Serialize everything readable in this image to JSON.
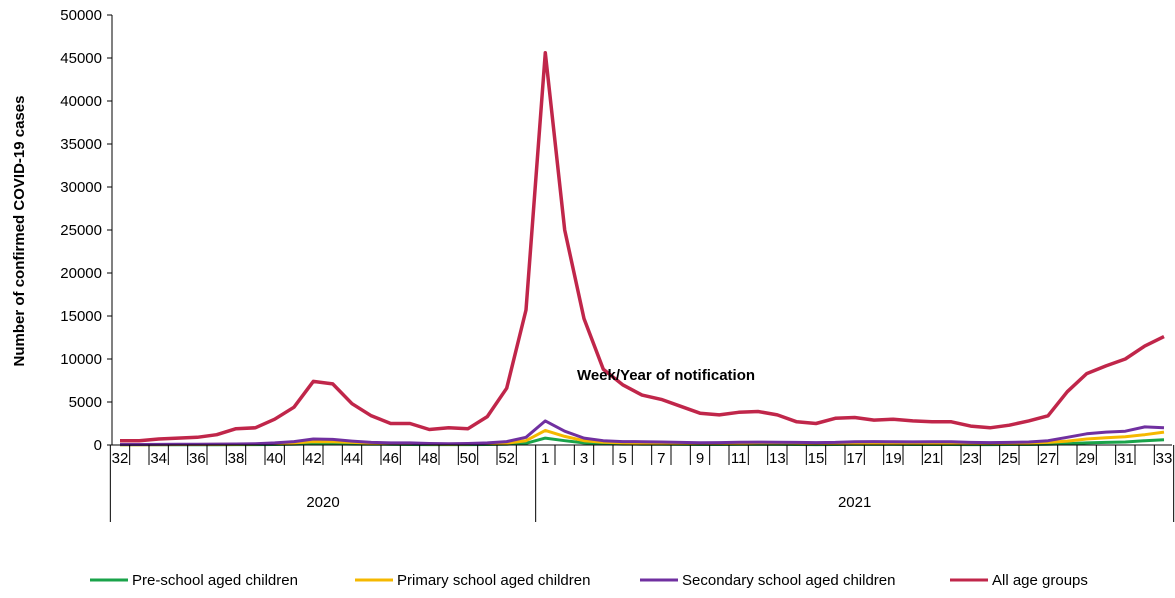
{
  "chart_data": {
    "type": "line",
    "title": "",
    "ylabel": "Number of confirmed COVID-19 cases",
    "xlabel": "Week/Year of notification",
    "ylim": [
      0,
      50000
    ],
    "yticks": [
      0,
      5000,
      10000,
      15000,
      20000,
      25000,
      30000,
      35000,
      40000,
      45000,
      50000
    ],
    "years": [
      {
        "label": "2020",
        "first_week": 32,
        "last_week": 53
      },
      {
        "label": "2021",
        "first_week": 1,
        "last_week": 33
      }
    ],
    "weeks": [
      "32",
      "33",
      "34",
      "35",
      "36",
      "37",
      "38",
      "39",
      "40",
      "41",
      "42",
      "43",
      "44",
      "45",
      "46",
      "47",
      "48",
      "49",
      "50",
      "51",
      "52",
      "53",
      "1",
      "2",
      "3",
      "4",
      "5",
      "6",
      "7",
      "8",
      "9",
      "10",
      "11",
      "12",
      "13",
      "14",
      "15",
      "16",
      "17",
      "18",
      "19",
      "20",
      "21",
      "22",
      "23",
      "24",
      "25",
      "26",
      "27",
      "28",
      "29",
      "30",
      "31",
      "32",
      "33"
    ],
    "tick_labels": [
      "32",
      "34",
      "36",
      "38",
      "40",
      "42",
      "44",
      "46",
      "48",
      "50",
      "52",
      "1",
      "3",
      "5",
      "7",
      "9",
      "11",
      "13",
      "15",
      "17",
      "19",
      "21",
      "23",
      "25",
      "27",
      "29",
      "31",
      "33"
    ],
    "grid": false,
    "legend_position": "bottom",
    "series": [
      {
        "name": "Pre-school aged children",
        "color": "#1aa34a",
        "values": [
          20,
          20,
          25,
          30,
          30,
          35,
          45,
          50,
          60,
          80,
          150,
          130,
          110,
          90,
          70,
          60,
          50,
          45,
          50,
          60,
          90,
          200,
          800,
          500,
          250,
          150,
          100,
          90,
          80,
          70,
          60,
          60,
          70,
          70,
          70,
          60,
          50,
          55,
          70,
          70,
          65,
          60,
          55,
          55,
          50,
          50,
          55,
          60,
          80,
          150,
          250,
          300,
          350,
          500,
          600
        ]
      },
      {
        "name": "Primary school aged children",
        "color": "#f5b800",
        "values": [
          40,
          40,
          50,
          60,
          60,
          70,
          90,
          100,
          150,
          250,
          400,
          380,
          300,
          220,
          160,
          130,
          100,
          90,
          100,
          140,
          220,
          500,
          1700,
          1000,
          500,
          320,
          250,
          220,
          200,
          180,
          160,
          170,
          220,
          260,
          280,
          250,
          200,
          190,
          220,
          230,
          220,
          210,
          220,
          230,
          180,
          170,
          190,
          230,
          300,
          450,
          700,
          850,
          950,
          1200,
          1500
        ]
      },
      {
        "name": "Secondary school aged children",
        "color": "#7030a0",
        "values": [
          60,
          60,
          70,
          80,
          90,
          100,
          120,
          150,
          250,
          400,
          700,
          650,
          450,
          300,
          250,
          250,
          180,
          150,
          170,
          250,
          400,
          900,
          2800,
          1600,
          800,
          500,
          400,
          380,
          350,
          300,
          260,
          280,
          320,
          340,
          330,
          300,
          280,
          300,
          380,
          390,
          370,
          360,
          380,
          370,
          300,
          280,
          300,
          350,
          500,
          900,
          1300,
          1500,
          1600,
          2100,
          2000
        ]
      },
      {
        "name": "All age groups",
        "color": "#c0264a",
        "values": [
          500,
          500,
          700,
          800,
          900,
          1200,
          1900,
          2000,
          3000,
          4400,
          7400,
          7100,
          4800,
          3400,
          2500,
          2500,
          1800,
          2000,
          1900,
          3300,
          6600,
          15700,
          45600,
          25000,
          14700,
          8800,
          7000,
          5800,
          5300,
          4500,
          3700,
          3500,
          3800,
          3900,
          3500,
          2700,
          2500,
          3100,
          3200,
          2900,
          3000,
          2800,
          2700,
          2700,
          2200,
          2000,
          2300,
          2800,
          3400,
          6200,
          8300,
          9200,
          10000,
          11500,
          12600
        ]
      }
    ]
  }
}
